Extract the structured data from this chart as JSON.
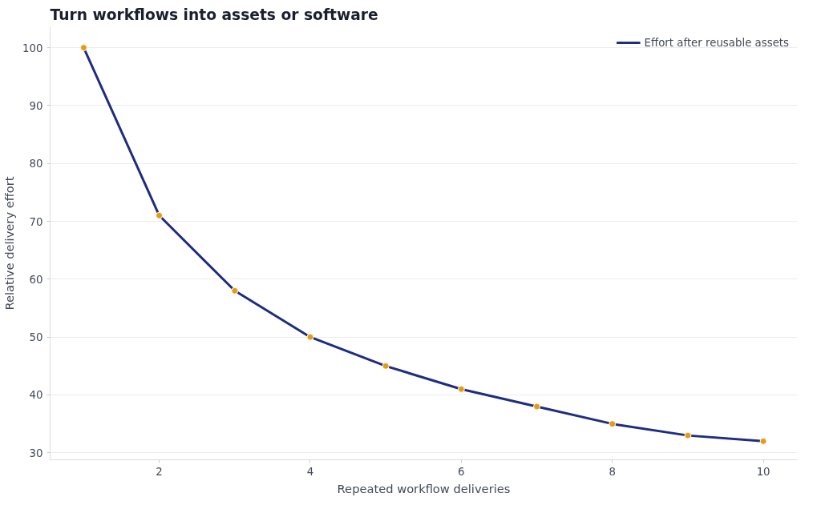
{
  "chart_data": {
    "type": "line",
    "title": "Turn workflows into assets or software",
    "xlabel": "Repeated workflow deliveries",
    "ylabel": "Relative delivery effort",
    "x": [
      1,
      2,
      3,
      4,
      5,
      6,
      7,
      8,
      9,
      10
    ],
    "series": [
      {
        "name": "Effort after reusable assets",
        "color": "#1f2d80",
        "colors": [
          "#e69b12",
          "#e69b12",
          "#e69b12",
          "#e69b12",
          "#e69b12",
          "#e69b12",
          "#e69b12",
          "#e69b12",
          "#e69b12",
          "#e69b12"
        ],
        "values": [
          100,
          71,
          58,
          50,
          45,
          41,
          38,
          35,
          33,
          32
        ]
      }
    ],
    "xlim": [
      0.555,
      10.45
    ],
    "ylim": [
      28.8,
      103.6
    ],
    "xticks": [
      2,
      4,
      6,
      8,
      10
    ],
    "yticks": [
      30,
      40,
      50,
      60,
      70,
      80,
      90,
      100
    ],
    "grid": "y",
    "legend": "top right",
    "marker": "circle",
    "line_style": "solid"
  }
}
